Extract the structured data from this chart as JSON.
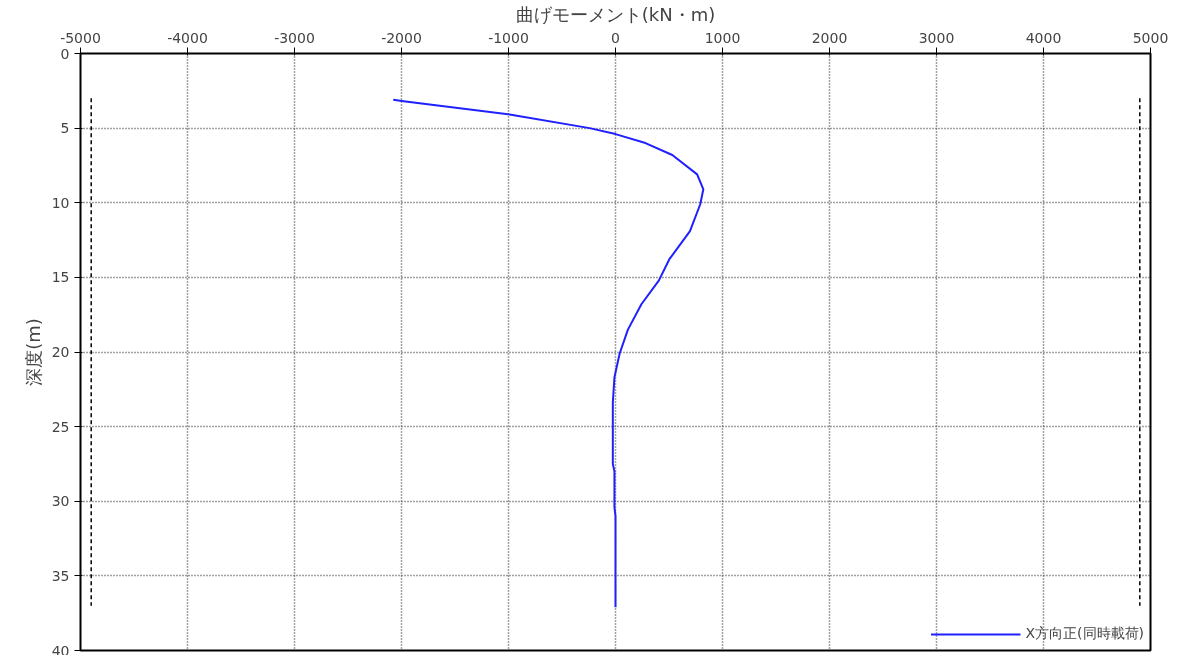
{
  "chart_data": {
    "type": "line",
    "xlabel": "曲げモーメント(kN・m)",
    "ylabel": "深度(m)",
    "xlim": [
      -5000,
      5000
    ],
    "xticks": [
      -5000,
      -4000,
      -3000,
      -2000,
      -1000,
      0,
      1000,
      2000,
      3000,
      4000,
      5000
    ],
    "ylim": [
      40,
      0
    ],
    "yticks": [
      0,
      5,
      10,
      15,
      20,
      25,
      30,
      35,
      40
    ],
    "grid": true,
    "legend": "bottom right",
    "marker": "none",
    "series": [
      {
        "name": "X方向正(同時載荷)",
        "color": "#2020ff",
        "line_style": "solid",
        "x": [
          -2077,
          -1980,
          -976,
          -242,
          0,
          280,
          531,
          763,
          821,
          792,
          696,
          502,
          406,
          242,
          116,
          39,
          -10,
          -25,
          -25,
          -10,
          -10,
          0,
          0
        ],
        "values": [
          3.1,
          3.2,
          4.1,
          5.0,
          5.4,
          6.0,
          6.8,
          8.1,
          9.1,
          10.1,
          11.9,
          13.8,
          15.2,
          16.8,
          18.5,
          20.1,
          21.7,
          23.4,
          27.5,
          28.0,
          30.4,
          31.0,
          37.1
        ]
      },
      {
        "color": "#000000",
        "line_style": "dashed",
        "x": [
          -4900,
          -4900
        ],
        "values": [
          3,
          37
        ]
      },
      {
        "color": "#000000",
        "line_style": "dashed",
        "x": [
          4900,
          4900
        ],
        "values": [
          3,
          37
        ]
      }
    ]
  }
}
